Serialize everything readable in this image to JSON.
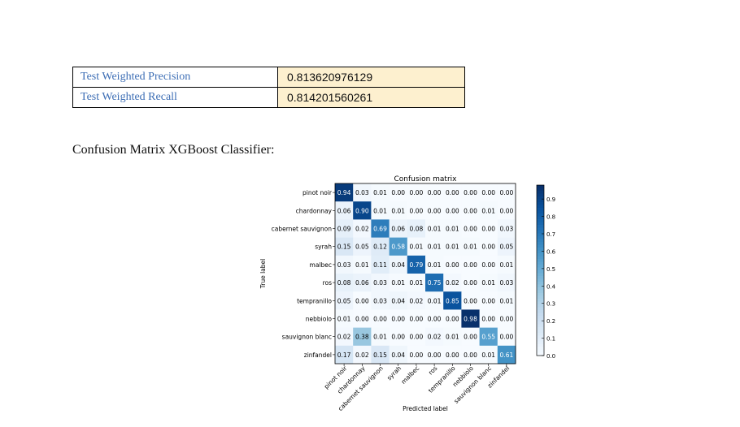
{
  "metrics": [
    {
      "label": "Test Weighted Precision",
      "value": "0.813620976129"
    },
    {
      "label": "Test Weighted Recall",
      "value": "0.814201560261"
    }
  ],
  "heading": "Confusion Matrix XGBoost Classifier:",
  "chart_data": {
    "type": "heatmap",
    "title": "Confusion matrix",
    "xlabel": "Predicted label",
    "ylabel": "True label",
    "labels": [
      "pinot noir",
      "chardonnay",
      "cabernet sauvignon",
      "syrah",
      "malbec",
      "ros",
      "tempranillo",
      "nebbiolo",
      "sauvignon blanc",
      "zinfandel"
    ],
    "matrix": [
      [
        0.94,
        0.03,
        0.01,
        0.0,
        0.0,
        0.0,
        0.0,
        0.0,
        0.0,
        0.0
      ],
      [
        0.06,
        0.9,
        0.01,
        0.01,
        0.0,
        0.0,
        0.0,
        0.0,
        0.01,
        0.0
      ],
      [
        0.09,
        0.02,
        0.69,
        0.06,
        0.08,
        0.01,
        0.01,
        0.0,
        0.0,
        0.03
      ],
      [
        0.15,
        0.05,
        0.12,
        0.58,
        0.01,
        0.01,
        0.01,
        0.01,
        0.0,
        0.05
      ],
      [
        0.03,
        0.01,
        0.11,
        0.04,
        0.79,
        0.01,
        0.0,
        0.0,
        0.0,
        0.01
      ],
      [
        0.08,
        0.06,
        0.03,
        0.01,
        0.01,
        0.75,
        0.02,
        0.0,
        0.01,
        0.03
      ],
      [
        0.05,
        0.0,
        0.03,
        0.04,
        0.02,
        0.01,
        0.85,
        0.0,
        0.0,
        0.01
      ],
      [
        0.01,
        0.0,
        0.0,
        0.0,
        0.0,
        0.0,
        0.0,
        0.98,
        0.0,
        0.0
      ],
      [
        0.02,
        0.38,
        0.01,
        0.0,
        0.0,
        0.02,
        0.01,
        0.0,
        0.55,
        0.0
      ],
      [
        0.17,
        0.02,
        0.15,
        0.04,
        0.0,
        0.0,
        0.0,
        0.0,
        0.01,
        0.61
      ]
    ],
    "colorbar_ticks": [
      "0.0",
      "0.1",
      "0.2",
      "0.3",
      "0.4",
      "0.5",
      "0.6",
      "0.7",
      "0.8",
      "0.9"
    ],
    "colorbar_range": [
      0,
      0.98
    ],
    "colormap": "Blues"
  }
}
